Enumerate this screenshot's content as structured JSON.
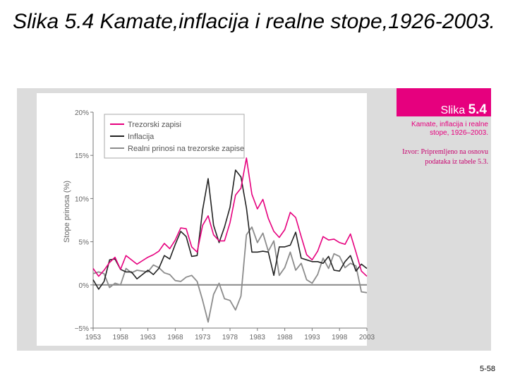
{
  "slide": {
    "title": "Slika 5.4 Kamate,inflacija i realne stope,1926-2003.",
    "page_number": "5-58"
  },
  "caption": {
    "label": "Slika",
    "number": "5.4",
    "subtitle": "Kamate, inflacija i realne stope, 1926–2003.",
    "source": "Izvor: Pripremljeno na osnovu podataka iz tabele 5.3."
  },
  "colors": {
    "treasury": "#e6007e",
    "inflation": "#222222",
    "real": "#8c8c8c",
    "caption_tab": "#e6007e",
    "panel": "#dcdcdc"
  },
  "chart_data": {
    "type": "line",
    "ylabel": "Stope prinosa (%)",
    "xlabel": "",
    "ylim": [
      -5,
      20
    ],
    "xlim": [
      1953,
      2003
    ],
    "yticks": [
      "20%",
      "15%",
      "10%",
      "5%",
      "0%",
      "−5%"
    ],
    "ytick_values": [
      20,
      15,
      10,
      5,
      0,
      -5
    ],
    "xticks": [
      "1953",
      "1958",
      "1963",
      "1968",
      "1973",
      "1978",
      "1983",
      "1988",
      "1993",
      "1998",
      "2003"
    ],
    "xtick_values": [
      1953,
      1958,
      1963,
      1968,
      1973,
      1978,
      1983,
      1988,
      1993,
      1998,
      2003
    ],
    "zero_line": true,
    "legend_position": "top-left",
    "x": [
      1953,
      1954,
      1955,
      1956,
      1957,
      1958,
      1959,
      1960,
      1961,
      1962,
      1963,
      1964,
      1965,
      1966,
      1967,
      1968,
      1969,
      1970,
      1971,
      1972,
      1973,
      1974,
      1975,
      1976,
      1977,
      1978,
      1979,
      1980,
      1981,
      1982,
      1983,
      1984,
      1985,
      1986,
      1987,
      1988,
      1989,
      1990,
      1991,
      1992,
      1993,
      1994,
      1995,
      1996,
      1997,
      1998,
      1999,
      2000,
      2001,
      2002,
      2003
    ],
    "series": [
      {
        "name": "Trezorski zapisi",
        "color_key": "treasury",
        "values": [
          1.9,
          1.0,
          1.7,
          2.6,
          3.2,
          1.8,
          3.4,
          2.9,
          2.4,
          2.8,
          3.2,
          3.5,
          3.9,
          4.8,
          4.2,
          5.2,
          6.6,
          6.5,
          4.4,
          3.8,
          6.9,
          8.0,
          5.8,
          5.1,
          5.1,
          7.2,
          10.4,
          11.2,
          14.7,
          10.5,
          8.8,
          9.9,
          7.7,
          6.2,
          5.5,
          6.4,
          8.4,
          7.8,
          5.6,
          3.5,
          2.9,
          3.9,
          5.6,
          5.2,
          5.3,
          4.9,
          4.7,
          5.9,
          3.8,
          1.6,
          1.0
        ]
      },
      {
        "name": "Inflacija",
        "color_key": "inflation",
        "values": [
          0.6,
          -0.5,
          0.4,
          2.9,
          3.0,
          1.8,
          1.5,
          1.5,
          0.7,
          1.2,
          1.7,
          1.2,
          1.9,
          3.4,
          3.0,
          4.7,
          6.2,
          5.6,
          3.3,
          3.4,
          8.7,
          12.3,
          6.9,
          4.9,
          6.7,
          9.0,
          13.3,
          12.5,
          8.9,
          3.8,
          3.8,
          3.9,
          3.8,
          1.1,
          4.4,
          4.4,
          4.6,
          6.1,
          3.1,
          2.9,
          2.7,
          2.7,
          2.5,
          3.3,
          1.7,
          1.6,
          2.7,
          3.4,
          1.6,
          2.4,
          1.9
        ]
      },
      {
        "name": "Realni prinosi na trezorske zapise",
        "color_key": "real",
        "values": [
          1.3,
          1.5,
          1.3,
          -0.3,
          0.2,
          0.0,
          1.9,
          1.4,
          1.7,
          1.6,
          1.5,
          2.3,
          2.0,
          1.4,
          1.2,
          0.5,
          0.4,
          0.9,
          1.1,
          0.4,
          -1.8,
          -4.3,
          -1.1,
          0.2,
          -1.6,
          -1.8,
          -2.9,
          -1.3,
          5.8,
          6.7,
          4.9,
          6.0,
          3.9,
          5.1,
          1.1,
          2.0,
          3.8,
          1.7,
          2.5,
          0.6,
          0.2,
          1.2,
          3.1,
          1.9,
          3.6,
          3.3,
          2.0,
          2.5,
          2.2,
          -0.8,
          -0.9
        ]
      }
    ]
  }
}
